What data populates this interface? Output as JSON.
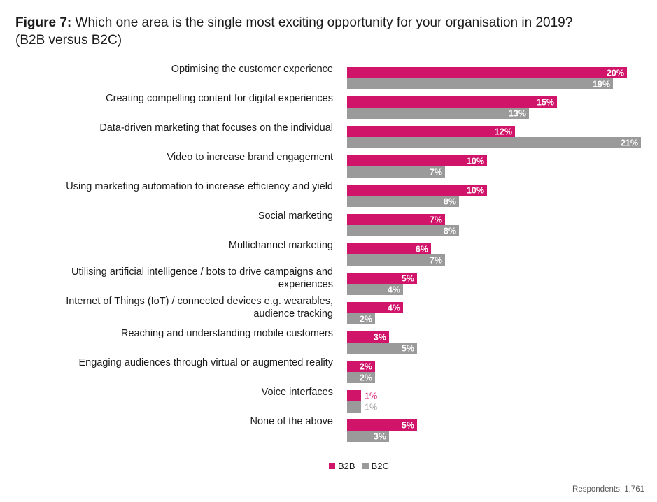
{
  "figure_label": "Figure 7:",
  "title": "Which one area is the single most exciting opportunity for your organisation in 2019?",
  "subtitle": "(B2B versus B2C)",
  "footer": "Respondents: 1,761",
  "colors": {
    "B2B": "#d0146a",
    "B2C": "#9a9a9a"
  },
  "chart_data": {
    "type": "bar",
    "orientation": "horizontal",
    "categories": [
      [
        "Optimising the customer experience"
      ],
      [
        "Creating compelling content for digital experiences"
      ],
      [
        "Data-driven marketing that focuses on the individual"
      ],
      [
        "Video to increase brand engagement"
      ],
      [
        "Using marketing automation to increase efficiency and yield"
      ],
      [
        "Social marketing"
      ],
      [
        "Multichannel marketing"
      ],
      [
        "Utilising artificial intelligence / bots to drive campaigns and",
        "experiences"
      ],
      [
        "Internet of Things (IoT) / connected devices e.g. wearables,",
        "audience tracking"
      ],
      [
        "Reaching and understanding mobile customers"
      ],
      [
        "Engaging audiences through virtual or augmented reality"
      ],
      [
        "Voice interfaces"
      ],
      [
        "None of the above"
      ]
    ],
    "series": [
      {
        "name": "B2B",
        "values": [
          20,
          15,
          12,
          10,
          10,
          7,
          6,
          5,
          4,
          3,
          2,
          1,
          5
        ]
      },
      {
        "name": "B2C",
        "values": [
          19,
          13,
          21,
          7,
          8,
          8,
          7,
          4,
          2,
          5,
          2,
          1,
          3
        ]
      }
    ],
    "value_suffix": "%",
    "legend_position": "bottom",
    "grid": false
  }
}
